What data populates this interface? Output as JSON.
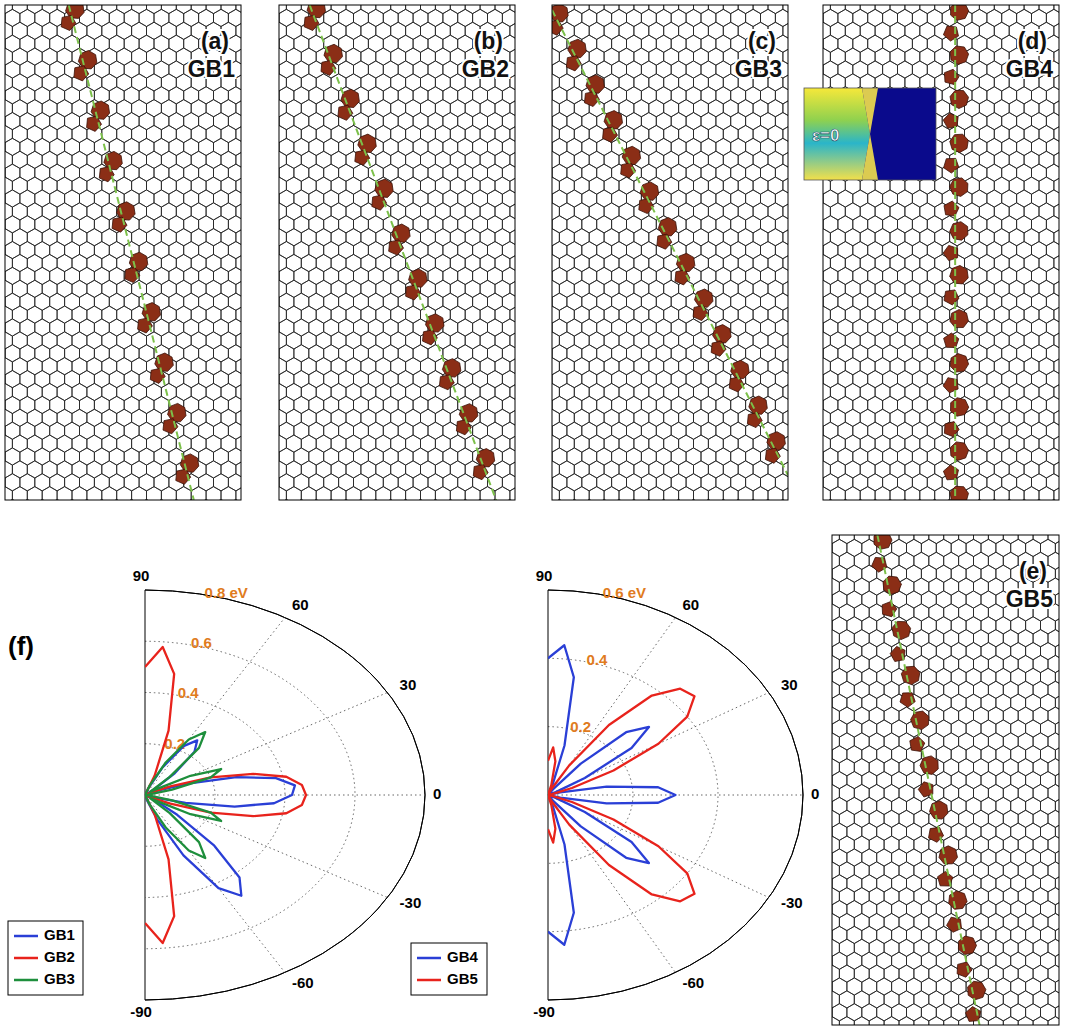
{
  "panels": [
    {
      "letter": "(a)",
      "label": "GB1"
    },
    {
      "letter": "(b)",
      "label": "GB2"
    },
    {
      "letter": "(c)",
      "label": "GB3"
    },
    {
      "letter": "(d)",
      "label": "GB4"
    },
    {
      "letter": "(e)",
      "label": "GB5"
    }
  ],
  "inset": {
    "label": "ε=0"
  },
  "figure_label": "(f)",
  "chart_data": [
    {
      "type": "polar",
      "legend": "lower left",
      "x": [
        -90,
        -85,
        -80,
        -75,
        -70,
        -65,
        -60,
        -55,
        -50,
        -45,
        -40,
        -35,
        -30,
        -25,
        -20,
        -15,
        -10,
        -5,
        0,
        5,
        10,
        15,
        20,
        25,
        30,
        35,
        40,
        45,
        50,
        55,
        60,
        65,
        70,
        75,
        80,
        85,
        90
      ],
      "xlim": [
        -90,
        90
      ],
      "xticks": [
        -90,
        -60,
        -30,
        0,
        30,
        60,
        90
      ],
      "ylim": [
        0,
        0.8
      ],
      "yticks": [
        0.2,
        0.4,
        0.6,
        {
          "value": 0.8,
          "label": "0.8 eV"
        }
      ],
      "series": [
        {
          "name": "GB1",
          "color": "#2a3fd6",
          "values": [
            0,
            0,
            0,
            0.02,
            0.1,
            0.26,
            0.42,
            0.48,
            0.42,
            0.28,
            0.12,
            0.03,
            0,
            0,
            0.03,
            0.12,
            0.26,
            0.37,
            0.42,
            0.43,
            0.38,
            0.27,
            0.13,
            0.04,
            0,
            0,
            0.03,
            0.12,
            0.22,
            0.26,
            0.22,
            0.12,
            0.03,
            0,
            0,
            0,
            0
          ]
        },
        {
          "name": "GB2",
          "color": "#e8231c",
          "values": [
            0.5,
            0.58,
            0.48,
            0.26,
            0.08,
            0,
            0,
            0,
            0,
            0,
            0,
            0,
            0.02,
            0.08,
            0.2,
            0.32,
            0.41,
            0.45,
            0.46,
            0.45,
            0.41,
            0.32,
            0.2,
            0.08,
            0.02,
            0,
            0,
            0,
            0,
            0,
            0,
            0,
            0.08,
            0.26,
            0.48,
            0.58,
            0.5
          ]
        },
        {
          "name": "GB3",
          "color": "#1e8f3c",
          "values": [
            0,
            0,
            0,
            0,
            0.04,
            0.14,
            0.25,
            0.3,
            0.24,
            0.1,
            0.02,
            0.04,
            0.15,
            0.24,
            0.2,
            0.08,
            0.01,
            0,
            0,
            0,
            0.01,
            0.08,
            0.2,
            0.24,
            0.15,
            0.04,
            0.02,
            0.1,
            0.24,
            0.3,
            0.25,
            0.14,
            0.04,
            0,
            0,
            0,
            0
          ]
        }
      ]
    },
    {
      "type": "polar",
      "legend": "lower left",
      "x": [
        -90,
        -85,
        -80,
        -75,
        -70,
        -65,
        -60,
        -55,
        -50,
        -45,
        -40,
        -35,
        -30,
        -25,
        -20,
        -15,
        -10,
        -5,
        0,
        5,
        10,
        15,
        20,
        25,
        30,
        35,
        40,
        45,
        50,
        55,
        60,
        65,
        70,
        75,
        80,
        85,
        90
      ],
      "xlim": [
        -90,
        90
      ],
      "xticks": [
        -90,
        -60,
        -30,
        0,
        30,
        60,
        90
      ],
      "ylim": [
        0,
        0.6
      ],
      "yticks": [
        0.2,
        0.4,
        {
          "value": 0.6,
          "label": "0.6 eV"
        }
      ],
      "series": [
        {
          "name": "GB4",
          "color": "#2a3fd6",
          "values": [
            0.4,
            0.44,
            0.35,
            0.15,
            0.03,
            0,
            0,
            0.02,
            0.12,
            0.26,
            0.31,
            0.24,
            0.1,
            0.02,
            0,
            0.03,
            0.14,
            0.26,
            0.3,
            0.26,
            0.14,
            0.03,
            0,
            0.02,
            0.1,
            0.24,
            0.31,
            0.26,
            0.12,
            0.02,
            0,
            0,
            0.03,
            0.15,
            0.35,
            0.44,
            0.4
          ]
        },
        {
          "name": "GB5",
          "color": "#e8231c",
          "values": [
            0.1,
            0.14,
            0.1,
            0.03,
            0,
            0.02,
            0.1,
            0.25,
            0.38,
            0.44,
            0.45,
            0.4,
            0.3,
            0.17,
            0.06,
            0.01,
            0,
            0,
            0,
            0,
            0,
            0.01,
            0.06,
            0.17,
            0.3,
            0.4,
            0.45,
            0.44,
            0.38,
            0.25,
            0.1,
            0.02,
            0,
            0.03,
            0.1,
            0.14,
            0.1
          ]
        }
      ]
    }
  ]
}
